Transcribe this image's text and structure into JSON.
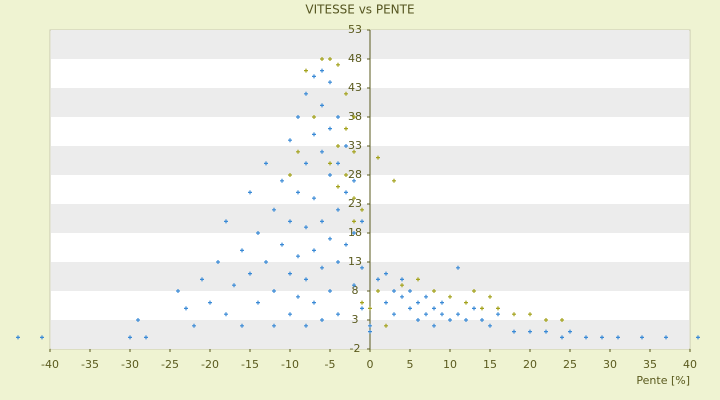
{
  "chart_data": {
    "type": "scatter",
    "title": "VITESSE vs PENTE",
    "x_label": "Pente [%]",
    "xlim": [
      -40,
      40
    ],
    "xticks": [
      -40,
      -35,
      -30,
      -25,
      -20,
      -15,
      -10,
      -5,
      0,
      5,
      10,
      15,
      20,
      25,
      30,
      35,
      40
    ],
    "ylim": [
      -2,
      53
    ],
    "yticks": [
      -2,
      3,
      8,
      13,
      18,
      23,
      28,
      33,
      38,
      43,
      48,
      53
    ],
    "grid": "bands",
    "series": [
      {
        "color": "#3a8ad6",
        "x": [
          -44,
          -41,
          -30,
          -29,
          -28,
          -24,
          -23,
          -22,
          -21,
          -20,
          -19,
          -18,
          -18,
          -17,
          -16,
          -16,
          -15,
          -15,
          -14,
          -14,
          -13,
          -13,
          -12,
          -12,
          -12,
          -11,
          -11,
          -10,
          -10,
          -10,
          -10,
          -9,
          -9,
          -9,
          -9,
          -8,
          -8,
          -8,
          -8,
          -8,
          -7,
          -7,
          -7,
          -7,
          -7,
          -6,
          -6,
          -6,
          -6,
          -6,
          -6,
          -5,
          -5,
          -5,
          -5,
          -5,
          -4,
          -4,
          -4,
          -4,
          -4,
          -3,
          -3,
          -3,
          -2,
          -2,
          -2,
          -1,
          -1,
          -1,
          0,
          0,
          1,
          2,
          2,
          3,
          3,
          4,
          4,
          5,
          5,
          6,
          6,
          7,
          7,
          8,
          8,
          9,
          9,
          10,
          11,
          11,
          12,
          13,
          14,
          15,
          16,
          18,
          20,
          22,
          24,
          25,
          27,
          29,
          31,
          34,
          37,
          41
        ],
        "values": [
          0,
          0,
          0,
          3,
          0,
          8,
          5,
          2,
          10,
          6,
          13,
          4,
          20,
          9,
          15,
          2,
          25,
          11,
          18,
          6,
          30,
          13,
          22,
          8,
          2,
          27,
          16,
          34,
          20,
          11,
          4,
          38,
          25,
          14,
          7,
          42,
          30,
          19,
          10,
          2,
          45,
          35,
          24,
          15,
          6,
          46,
          40,
          32,
          20,
          12,
          3,
          44,
          36,
          28,
          17,
          8,
          38,
          30,
          22,
          13,
          4,
          33,
          25,
          16,
          27,
          18,
          9,
          20,
          12,
          5,
          2,
          1,
          10,
          6,
          11,
          8,
          4,
          7,
          10,
          5,
          8,
          3,
          6,
          4,
          7,
          5,
          2,
          4,
          6,
          3,
          4,
          12,
          3,
          5,
          3,
          2,
          4,
          1,
          1,
          1,
          0,
          1,
          0,
          0,
          0,
          0,
          0,
          0
        ]
      },
      {
        "color": "#a3a21c",
        "x": [
          -8,
          -6,
          -5,
          -4,
          -3,
          -2,
          -3,
          -4,
          -2,
          -5,
          -3,
          -2,
          -4,
          -1,
          -9,
          -10,
          -7,
          -2,
          1,
          3,
          1,
          0,
          -1,
          4,
          6,
          8,
          10,
          12,
          14,
          16,
          18,
          20,
          22,
          24,
          2,
          13,
          15
        ],
        "values": [
          46,
          48,
          48,
          47,
          42,
          38,
          36,
          33,
          32,
          30,
          28,
          24,
          26,
          22,
          32,
          28,
          38,
          20,
          31,
          27,
          8,
          5,
          6,
          9,
          10,
          8,
          7,
          6,
          5,
          5,
          4,
          4,
          3,
          3,
          2,
          8,
          7
        ]
      }
    ]
  }
}
